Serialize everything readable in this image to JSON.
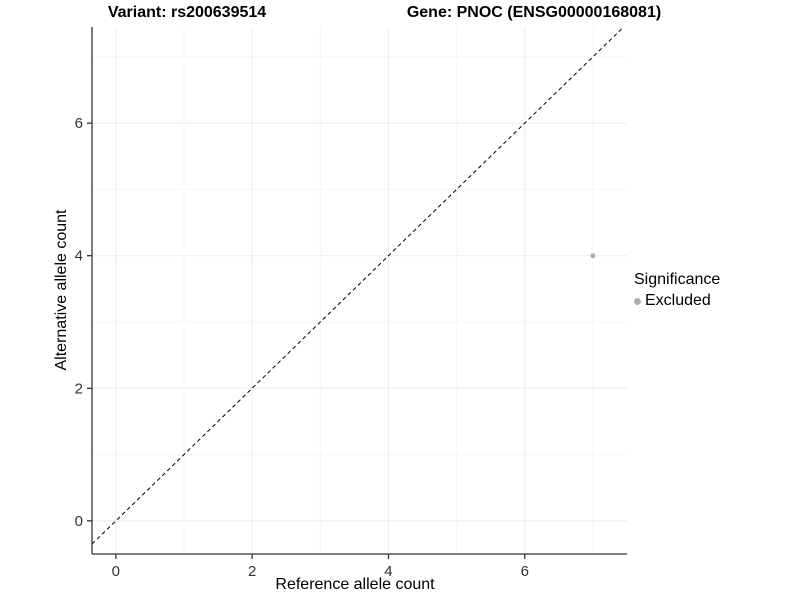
{
  "chart_data": {
    "type": "scatter",
    "title_left": "Variant: rs200639514",
    "title_right": "Gene: PNOC (ENSG00000168081)",
    "xlabel": "Reference allele count",
    "ylabel": "Alternative allele count",
    "xlim": [
      -0.35,
      7.5
    ],
    "ylim": [
      -0.5,
      7.45
    ],
    "x_major_ticks": [
      0,
      2,
      4,
      6
    ],
    "y_major_ticks": [
      0,
      2,
      4,
      6
    ],
    "x_minor_ticks": [
      1,
      3,
      5,
      7
    ],
    "y_minor_ticks": [
      1,
      3,
      5,
      7
    ],
    "x_tick_labels": [
      "0",
      "2",
      "4",
      "6"
    ],
    "y_tick_labels": [
      "0",
      "2",
      "4",
      "6"
    ],
    "grid": true,
    "legend_position": "right",
    "points": [
      {
        "x": 7,
        "y": 4,
        "series": "Excluded"
      }
    ],
    "reference_line": {
      "kind": "abline",
      "slope": 1,
      "intercept": 0,
      "style": "dashed"
    },
    "legend": {
      "title": "Significance",
      "entries": [
        {
          "label": "Excluded",
          "color": "#b0b0b0"
        }
      ]
    },
    "colors": {
      "point": "#b0b0b0",
      "grid_major": "#ebebeb",
      "grid_minor": "#f5f5f5",
      "axis_line": "#333333",
      "tick_text": "#333333",
      "reference_line": "#000000",
      "background": "#ffffff"
    }
  }
}
